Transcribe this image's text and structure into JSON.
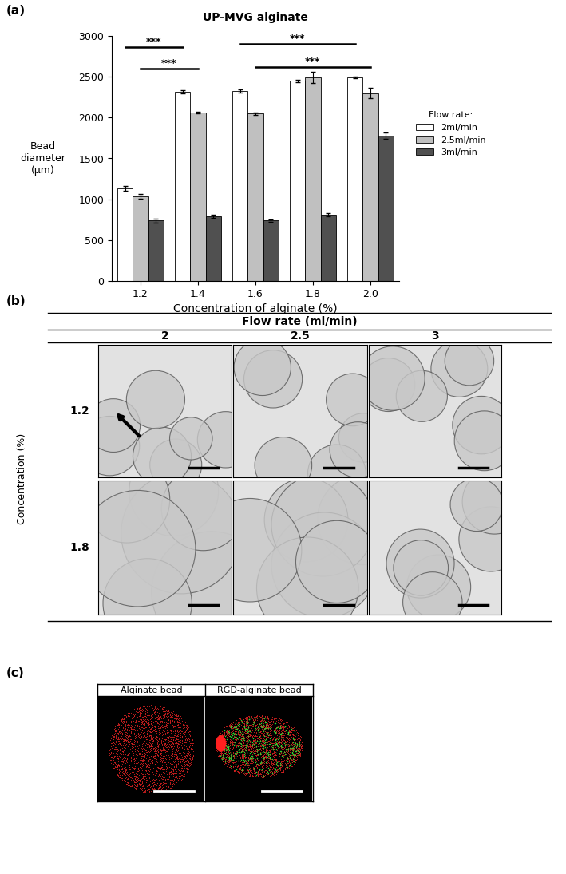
{
  "chart_data": {
    "type": "bar",
    "title": "UP-MVG alginate",
    "x_label": "Concentration of alginate (%)",
    "y_label": "Bead\ndiameter\n(μm)",
    "categories": [
      "1.2",
      "1.4",
      "1.6",
      "1.8",
      "2.0"
    ],
    "series": [
      {
        "name": "2ml/min",
        "color": "#ffffff",
        "values": [
          1130,
          2320,
          2330,
          2450,
          2490
        ],
        "errors": [
          30,
          20,
          20,
          15,
          10
        ]
      },
      {
        "name": "2.5ml/min",
        "color": "#c0c0c0",
        "values": [
          1040,
          2060,
          2050,
          2490,
          2300
        ],
        "errors": [
          30,
          10,
          15,
          70,
          60
        ]
      },
      {
        "name": "3ml/min",
        "color": "#505050",
        "values": [
          740,
          790,
          740,
          810,
          1780
        ],
        "errors": [
          25,
          20,
          15,
          20,
          40
        ]
      }
    ],
    "ylim": [
      0,
      3000
    ],
    "yticks": [
      0,
      500,
      1000,
      1500,
      2000,
      2500,
      3000
    ],
    "grid": false,
    "legend": "right",
    "legend_title": "Flow rate:",
    "annotations": [
      {
        "text": "***",
        "from": "1.2",
        "to": "1.4",
        "series": "2ml/min",
        "y": 2860
      },
      {
        "text": "***",
        "from": "1.2",
        "to": "1.4",
        "series": "2.5ml/min",
        "y": 2600
      },
      {
        "text": "***",
        "from": "1.6",
        "to": "2.0",
        "series": "2ml/min",
        "y": 2900
      },
      {
        "text": "***",
        "from": "1.6",
        "to": "2.0",
        "series": "2.5ml/min",
        "y": 2620
      }
    ]
  },
  "panel_a": {
    "label": "(a)"
  },
  "panel_b": {
    "label": "(b)",
    "header": "Flow rate (ml/min)",
    "columns": [
      "2",
      "2.5",
      "3"
    ],
    "row_header": "Concentration (%)",
    "rows": [
      "1.2",
      "1.8"
    ]
  },
  "panel_c": {
    "label": "(c)",
    "columns": [
      "Alginate bead",
      "RGD-alginate bead"
    ]
  }
}
